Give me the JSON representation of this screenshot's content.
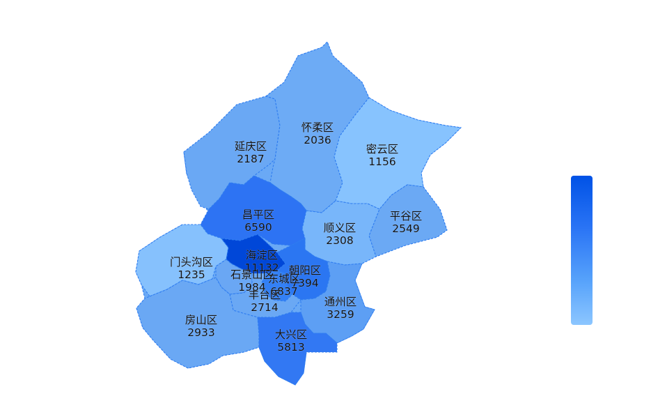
{
  "map": {
    "districts": [
      {
        "id": "yanqing",
        "name": "延庆区",
        "value": "2187"
      },
      {
        "id": "huairou",
        "name": "怀柔区",
        "value": "2036"
      },
      {
        "id": "miyun",
        "name": "密云区",
        "value": "1156"
      },
      {
        "id": "pinggu",
        "name": "平谷区",
        "value": "2549"
      },
      {
        "id": "changping",
        "name": "昌平区",
        "value": "6590"
      },
      {
        "id": "shunyi",
        "name": "顺义区",
        "value": "2308"
      },
      {
        "id": "mentougou",
        "name": "门头沟区",
        "value": "1235"
      },
      {
        "id": "haidian",
        "name": "海淀区",
        "value": "11132"
      },
      {
        "id": "shijingshan",
        "name": "石景山区",
        "value": "1984"
      },
      {
        "id": "chaoyang",
        "name": "朝阳区",
        "value": "7394"
      },
      {
        "id": "dongcheng",
        "name": "东城区",
        "value": "6837"
      },
      {
        "id": "fengtai",
        "name": "丰台区",
        "value": "2714"
      },
      {
        "id": "tongzhou",
        "name": "通州区",
        "value": "3259"
      },
      {
        "id": "fangshan",
        "name": "房山区",
        "value": "2933"
      },
      {
        "id": "daxing",
        "name": "大兴区",
        "value": "5813"
      }
    ]
  },
  "legend": {
    "type": "continuous",
    "color_high": "#0052e6",
    "color_low": "#8cc6ff"
  }
}
